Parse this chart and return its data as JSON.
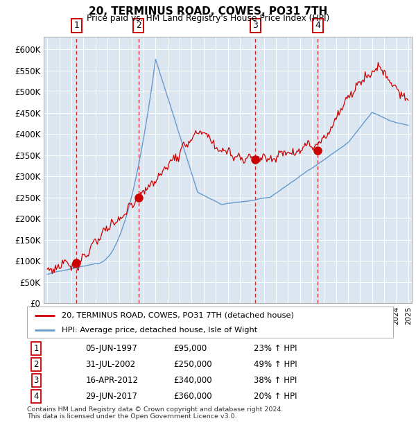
{
  "title": "20, TERMINUS ROAD, COWES, PO31 7TH",
  "subtitle": "Price paid vs. HM Land Registry's House Price Index (HPI)",
  "ylabel_ticks": [
    "£0",
    "£50K",
    "£100K",
    "£150K",
    "£200K",
    "£250K",
    "£300K",
    "£350K",
    "£400K",
    "£450K",
    "£500K",
    "£550K",
    "£600K"
  ],
  "ytick_values": [
    0,
    50000,
    100000,
    150000,
    200000,
    250000,
    300000,
    350000,
    400000,
    450000,
    500000,
    550000,
    600000
  ],
  "ylim": [
    0,
    630000
  ],
  "xlim_start": 1994.7,
  "xlim_end": 2025.3,
  "background_color": "#dce6f1",
  "grid_color": "#ffffff",
  "sale_points": [
    {
      "num": 1,
      "year": 1997.42,
      "price": 95000,
      "date": "05-JUN-1997",
      "pct": "23%"
    },
    {
      "num": 2,
      "year": 2002.58,
      "price": 250000,
      "date": "31-JUL-2002",
      "pct": "49%"
    },
    {
      "num": 3,
      "year": 2012.29,
      "price": 340000,
      "date": "16-APR-2012",
      "pct": "38%"
    },
    {
      "num": 4,
      "year": 2017.49,
      "price": 360000,
      "date": "29-JUN-2017",
      "pct": "20%"
    }
  ],
  "legend_label_red": "20, TERMINUS ROAD, COWES, PO31 7TH (detached house)",
  "legend_label_blue": "HPI: Average price, detached house, Isle of Wight",
  "table_rows": [
    [
      "1",
      "05-JUN-1997",
      "£95,000",
      "23% ↑ HPI"
    ],
    [
      "2",
      "31-JUL-2002",
      "£250,000",
      "49% ↑ HPI"
    ],
    [
      "3",
      "16-APR-2012",
      "£340,000",
      "38% ↑ HPI"
    ],
    [
      "4",
      "29-JUN-2017",
      "£360,000",
      "20% ↑ HPI"
    ]
  ],
  "footer": "Contains HM Land Registry data © Crown copyright and database right 2024.\nThis data is licensed under the Open Government Licence v3.0.",
  "red_color": "#cc0000",
  "blue_color": "#6699cc",
  "dashed_color": "#cc0000"
}
